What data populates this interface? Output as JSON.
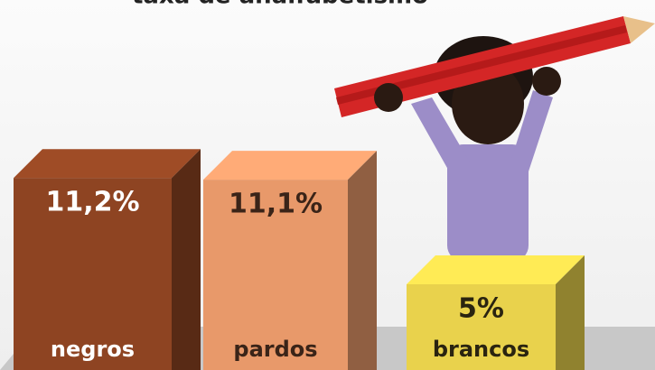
{
  "chart_data": {
    "type": "bar",
    "title": "taxa de analfabetismo",
    "categories": [
      "negros",
      "pardos",
      "brancos"
    ],
    "values": [
      11.2,
      11.1,
      5
    ],
    "value_labels": [
      "11,2%",
      "11,1%",
      "5%"
    ],
    "colors": [
      "#8e4422",
      "#e8996a",
      "#e9d24c"
    ],
    "label_colors": [
      "#ffffff",
      "#3a2418",
      "#2a2410"
    ]
  }
}
